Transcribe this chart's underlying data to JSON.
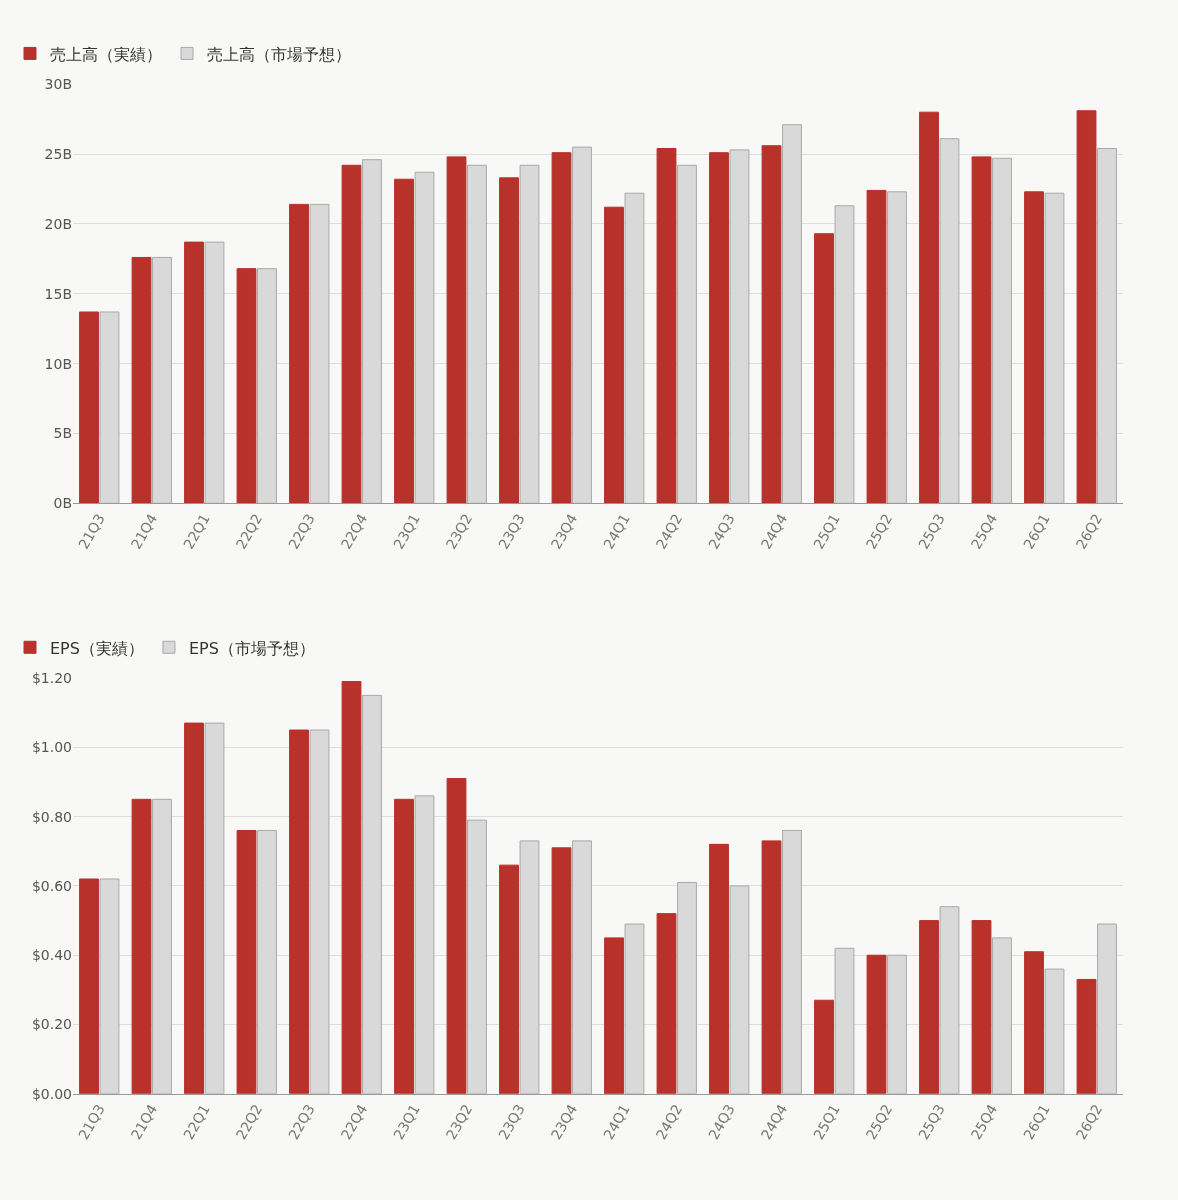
{
  "chart_data": [
    {
      "type": "bar",
      "categories": [
        "21Q3",
        "21Q4",
        "22Q1",
        "22Q2",
        "22Q3",
        "22Q4",
        "23Q1",
        "23Q2",
        "23Q3",
        "23Q4",
        "24Q1",
        "24Q2",
        "24Q3",
        "24Q4",
        "25Q1",
        "25Q2",
        "25Q3",
        "25Q4",
        "26Q1",
        "26Q2"
      ],
      "series": [
        {
          "name": "売上高（実績）",
          "color": "#b8312b",
          "values": [
            13.7,
            17.6,
            18.7,
            16.8,
            21.4,
            24.2,
            23.2,
            24.8,
            23.3,
            25.1,
            21.2,
            25.4,
            25.1,
            25.6,
            19.3,
            22.4,
            28.0,
            24.8,
            22.3,
            28.1
          ]
        },
        {
          "name": "売上高（市場予想）",
          "color": "#d9d9d9",
          "values": [
            13.7,
            17.6,
            18.7,
            16.8,
            21.4,
            24.6,
            23.7,
            24.2,
            24.2,
            25.5,
            22.2,
            24.2,
            25.3,
            27.1,
            21.3,
            22.3,
            26.1,
            24.7,
            22.2,
            25.4
          ]
        }
      ],
      "ylim": [
        0,
        30
      ],
      "yticks": [
        {
          "value": 0,
          "label": "0B"
        },
        {
          "value": 5,
          "label": "5B"
        },
        {
          "value": 10,
          "label": "10B"
        },
        {
          "value": 15,
          "label": "15B"
        },
        {
          "value": 20,
          "label": "20B"
        },
        {
          "value": 25,
          "label": "25B"
        },
        {
          "value": 30,
          "label": "30B"
        }
      ],
      "grid": "y",
      "legend": "top left"
    },
    {
      "type": "bar",
      "categories": [
        "21Q3",
        "21Q4",
        "22Q1",
        "22Q2",
        "22Q3",
        "22Q4",
        "23Q1",
        "23Q2",
        "23Q3",
        "23Q4",
        "24Q1",
        "24Q2",
        "24Q3",
        "24Q4",
        "25Q1",
        "25Q2",
        "25Q3",
        "25Q4",
        "26Q1",
        "26Q2"
      ],
      "series": [
        {
          "name": "EPS（実績）",
          "color": "#b8312b",
          "values": [
            0.62,
            0.85,
            1.07,
            0.76,
            1.05,
            1.19,
            0.85,
            0.91,
            0.66,
            0.71,
            0.45,
            0.52,
            0.72,
            0.73,
            0.27,
            0.4,
            0.5,
            0.5,
            0.41,
            0.33
          ]
        },
        {
          "name": "EPS（市場予想）",
          "color": "#d9d9d9",
          "values": [
            0.62,
            0.85,
            1.07,
            0.76,
            1.05,
            1.15,
            0.86,
            0.79,
            0.73,
            0.73,
            0.49,
            0.61,
            0.6,
            0.76,
            0.42,
            0.4,
            0.54,
            0.45,
            0.36,
            0.49
          ]
        }
      ],
      "ylim": [
        0,
        1.2
      ],
      "yticks": [
        {
          "value": 0,
          "label": "$0.00"
        },
        {
          "value": 0.2,
          "label": "$0.20"
        },
        {
          "value": 0.4,
          "label": "$0.40"
        },
        {
          "value": 0.6,
          "label": "$0.60"
        },
        {
          "value": 0.8,
          "label": "$0.80"
        },
        {
          "value": 1.0,
          "label": "$1.00"
        },
        {
          "value": 1.2,
          "label": "$1.20"
        }
      ],
      "grid": "y",
      "legend": "top left"
    }
  ]
}
